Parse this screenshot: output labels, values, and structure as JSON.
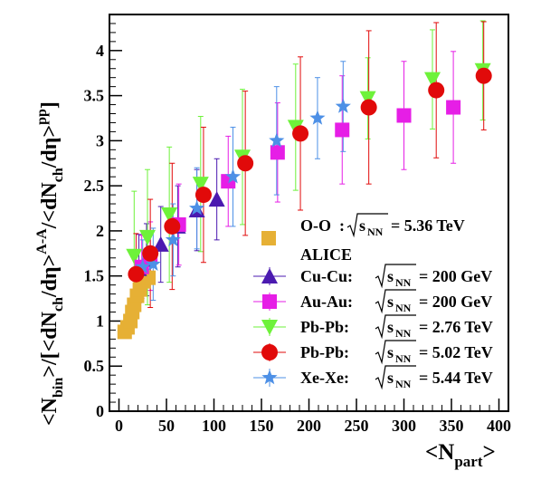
{
  "chart_data": {
    "type": "scatter",
    "title": "",
    "xlabel": {
      "base": "<N",
      "sub": "part",
      "tail": ">"
    },
    "ylabel": {
      "p1": "<N",
      "p1sub": "bin",
      "p2": ">/[<dN",
      "p2sub": "ch",
      "p3": "/dη>",
      "p3sup": "A-A",
      "p4": "/<dN",
      "p4sub": "ch",
      "p5": "/dη>",
      "p5sup": "pp",
      "p6": "]"
    },
    "xlim": [
      -10,
      410
    ],
    "ylim": [
      0,
      4.4
    ],
    "xticks": [
      0,
      50,
      100,
      150,
      200,
      250,
      300,
      350,
      400
    ],
    "xtick_labels": [
      "0",
      "50",
      "100",
      "150",
      "200",
      "250",
      "300",
      "350",
      "400"
    ],
    "yticks": [
      0,
      0.5,
      1,
      1.5,
      2,
      2.5,
      3,
      3.5,
      4
    ],
    "ytick_labels": [
      "0",
      "0.5",
      "1",
      "1.5",
      "2",
      "2.5",
      "3",
      "3.5",
      "4"
    ],
    "grid": false,
    "legend_position": "bottom-right",
    "series": [
      {
        "name": "O-O",
        "legend_label": "O-O",
        "legend_text": ":",
        "energy": "= 5.36 TeV",
        "extra_label": "ALICE",
        "marker": "square",
        "color": "#e6b035",
        "points": [
          {
            "x": 6,
            "y": 0.88,
            "err": 0
          },
          {
            "x": 9,
            "y": 0.93,
            "err": 0
          },
          {
            "x": 12,
            "y": 1.0,
            "err": 0
          },
          {
            "x": 14,
            "y": 1.1,
            "err": 0
          },
          {
            "x": 16,
            "y": 1.18,
            "err": 0
          },
          {
            "x": 19,
            "y": 1.28,
            "err": 0
          },
          {
            "x": 22,
            "y": 1.35,
            "err": 0
          },
          {
            "x": 26,
            "y": 1.44,
            "err": 0
          },
          {
            "x": 31,
            "y": 1.48,
            "err": 0
          }
        ]
      },
      {
        "name": "Cu-Cu",
        "legend_label": "Cu-Cu:",
        "energy": "= 200 GeV",
        "marker": "triangle-up",
        "color": "#4b1ab0",
        "points": [
          {
            "x": 21,
            "y": 1.58,
            "err": 0.38
          },
          {
            "x": 29,
            "y": 1.68,
            "err": 0.4
          },
          {
            "x": 44,
            "y": 1.85,
            "err": 0.42
          },
          {
            "x": 62,
            "y": 2.05,
            "err": 0.45
          },
          {
            "x": 82,
            "y": 2.23,
            "err": 0.45
          },
          {
            "x": 103,
            "y": 2.35,
            "err": 0.45
          }
        ]
      },
      {
        "name": "Au-Au",
        "legend_label": "Au-Au:",
        "energy": "= 200 GeV",
        "marker": "square",
        "color": "#e61ee6",
        "points": [
          {
            "x": 24,
            "y": 1.6,
            "err": 0.35
          },
          {
            "x": 33,
            "y": 1.72,
            "err": 0.38
          },
          {
            "x": 63,
            "y": 2.07,
            "err": 0.45
          },
          {
            "x": 115,
            "y": 2.55,
            "err": 0.5
          },
          {
            "x": 167,
            "y": 2.87,
            "err": 0.55
          },
          {
            "x": 235,
            "y": 3.12,
            "err": 0.6
          },
          {
            "x": 300,
            "y": 3.28,
            "err": 0.6
          },
          {
            "x": 352,
            "y": 3.37,
            "err": 0.62
          }
        ]
      },
      {
        "name": "Pb-Pb 2.76 TeV",
        "legend_label": "Pb-Pb:",
        "energy": "= 2.76 TeV",
        "marker": "triangle-down",
        "color": "#6ef23a",
        "points": [
          {
            "x": 16,
            "y": 1.72,
            "err": 0.72
          },
          {
            "x": 30,
            "y": 1.93,
            "err": 0.75
          },
          {
            "x": 53,
            "y": 2.18,
            "err": 0.75
          },
          {
            "x": 86,
            "y": 2.52,
            "err": 0.75
          },
          {
            "x": 130,
            "y": 2.82,
            "err": 0.75
          },
          {
            "x": 186,
            "y": 3.15,
            "err": 0.7
          },
          {
            "x": 262,
            "y": 3.47,
            "err": 0.45
          },
          {
            "x": 330,
            "y": 3.68,
            "err": 0.55
          },
          {
            "x": 383,
            "y": 3.78,
            "err": 0.55
          }
        ]
      },
      {
        "name": "Pb-Pb 5.02 TeV",
        "legend_label": "Pb-Pb:",
        "energy": "= 5.02 TeV",
        "marker": "circle",
        "color": "#e10a0a",
        "points": [
          {
            "x": 18,
            "y": 1.52,
            "err": 0.45
          },
          {
            "x": 33,
            "y": 1.75,
            "err": 0.6
          },
          {
            "x": 56,
            "y": 2.05,
            "err": 0.7
          },
          {
            "x": 89,
            "y": 2.4,
            "err": 0.75
          },
          {
            "x": 133,
            "y": 2.75,
            "err": 0.8
          },
          {
            "x": 191,
            "y": 3.08,
            "err": 0.85
          },
          {
            "x": 263,
            "y": 3.37,
            "err": 0.85
          },
          {
            "x": 334,
            "y": 3.56,
            "err": 0.75
          },
          {
            "x": 384,
            "y": 3.72,
            "err": 0.6
          }
        ]
      },
      {
        "name": "Xe-Xe",
        "legend_label": "Xe-Xe:",
        "energy": "= 5.44 TeV",
        "marker": "star",
        "color": "#4d90e6",
        "points": [
          {
            "x": 25,
            "y": 1.6,
            "err": 0.3
          },
          {
            "x": 36,
            "y": 1.63,
            "err": 0.4
          },
          {
            "x": 57,
            "y": 1.9,
            "err": 0.4
          },
          {
            "x": 82,
            "y": 2.25,
            "err": 0.45
          },
          {
            "x": 120,
            "y": 2.6,
            "err": 0.55
          },
          {
            "x": 166,
            "y": 3.0,
            "err": 0.6
          },
          {
            "x": 209,
            "y": 3.25,
            "err": 0.45
          },
          {
            "x": 236,
            "y": 3.38,
            "err": 0.5
          }
        ]
      }
    ],
    "legend_sqrt_symbol": "s",
    "legend_sqrt_sub": "NN"
  }
}
